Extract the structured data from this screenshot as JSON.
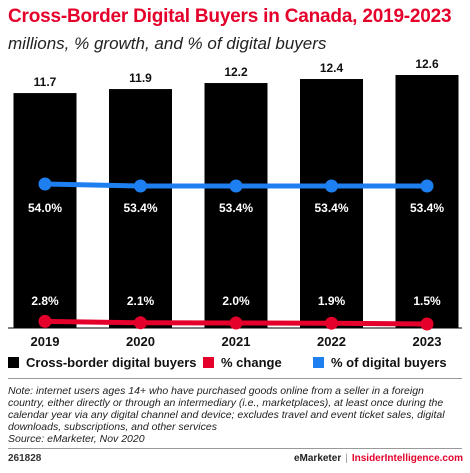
{
  "title": "Cross-Border Digital Buyers in Canada, 2019-2023",
  "subtitle": "millions, % growth, and % of digital buyers",
  "colors": {
    "bars": "#000000",
    "change": "#e4002b",
    "share": "#1e7ff0",
    "title": "#e4002b"
  },
  "chart_data": {
    "type": "bar",
    "categories": [
      "2019",
      "2020",
      "2021",
      "2022",
      "2023"
    ],
    "series": [
      {
        "name": "Cross-border digital buyers",
        "type": "bar",
        "values": [
          11.7,
          11.9,
          12.2,
          12.4,
          12.6
        ],
        "labels": [
          "11.7",
          "11.9",
          "12.2",
          "12.4",
          "12.6"
        ]
      },
      {
        "name": "% change",
        "type": "line",
        "values": [
          2.8,
          2.1,
          2.0,
          1.9,
          1.5
        ],
        "labels": [
          "2.8%",
          "2.1%",
          "2.0%",
          "1.9%",
          "1.5%"
        ]
      },
      {
        "name": "% of digital buyers",
        "type": "line",
        "values": [
          54.0,
          53.4,
          53.4,
          53.4,
          53.4
        ],
        "labels": [
          "54.0%",
          "53.4%",
          "53.4%",
          "53.4%",
          "53.4%"
        ]
      }
    ],
    "legend": [
      "Cross-border digital buyers",
      "% change",
      "% of digital buyers"
    ],
    "legend_position": "bottom"
  },
  "note": "Note: internet users ages 14+ who have purchased goods online from a seller in a foreign country, either directly or through an intermediary (i.e., marketplaces), at least once during the calendar year via any digital channel and device; excludes travel and event ticket sales, digital downloads, subscriptions, and other services",
  "source": "Source: eMarketer, Nov 2020",
  "footer": {
    "id": "261828",
    "brand": "eMarketer",
    "separator": "|",
    "site": "InsiderIntelligence.com"
  }
}
